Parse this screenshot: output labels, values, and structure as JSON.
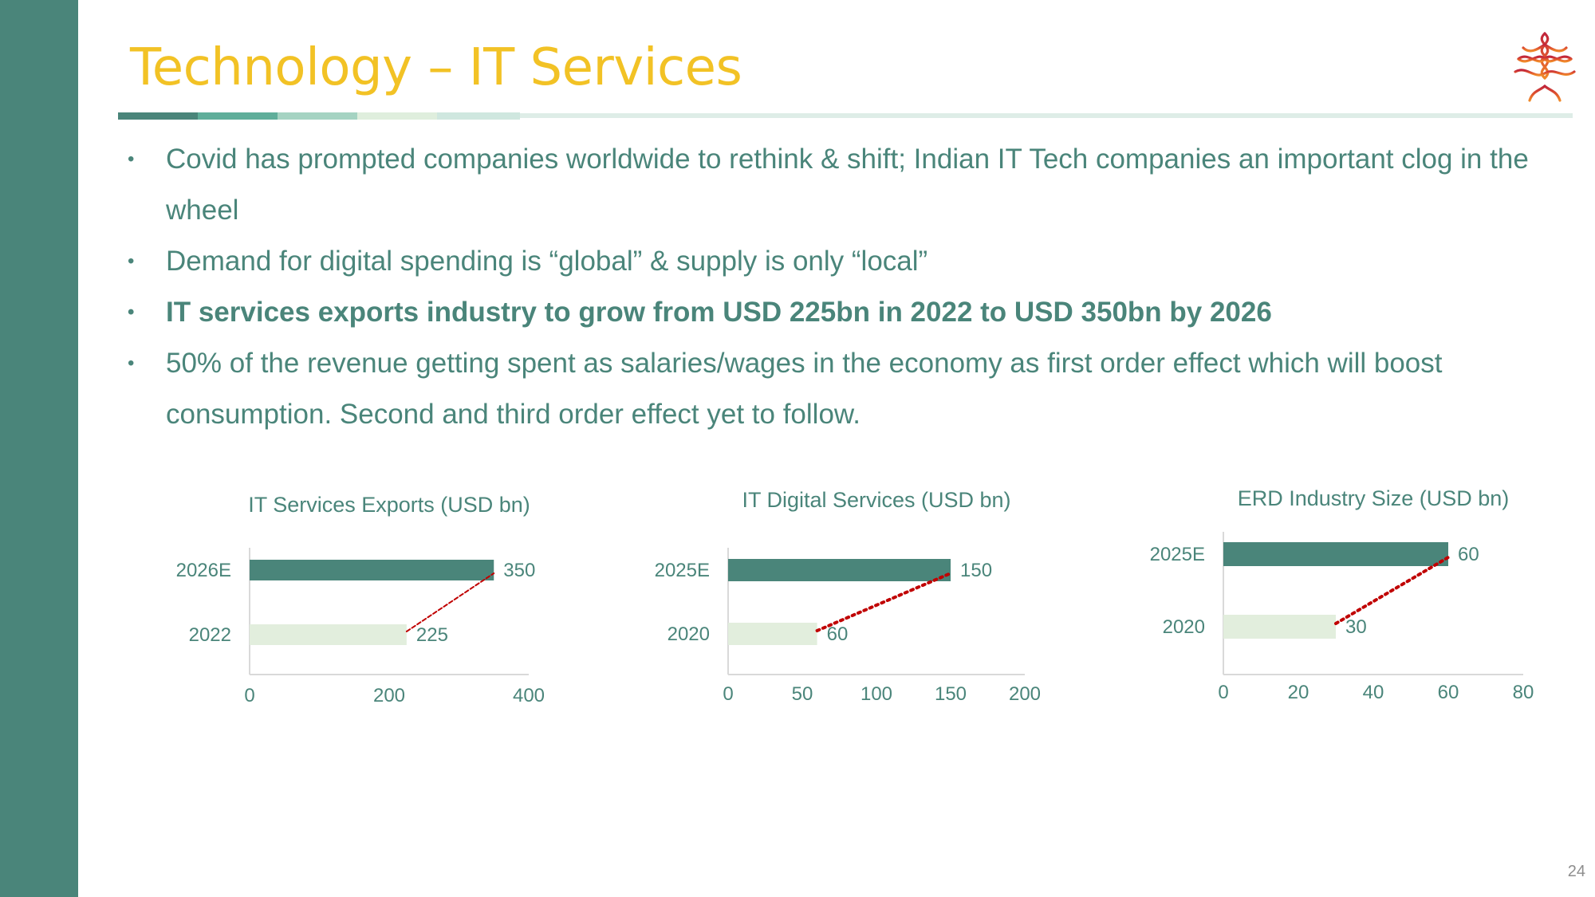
{
  "slide": {
    "title": "Technology – IT Services",
    "page_number": "24",
    "logo": "celtic-tree-logo",
    "colors": {
      "sidebar": "#4a857a",
      "title": "#f2c225",
      "text": "#4a857a",
      "bar_dark": "#4a857a",
      "bar_light": "#e2eedd",
      "trend": "#c00000"
    }
  },
  "bullets": [
    "Covid has prompted companies worldwide to rethink & shift; Indian IT  Tech companies an important clog in the wheel",
    "Demand for digital spending is “global” & supply is only “local”",
    "IT services exports industry to grow from USD 225bn in 2022 to USD 350bn by 2026",
    "50% of the revenue getting spent as salaries/wages in the economy as first order effect which will boost consumption. Second and third order effect yet to follow."
  ],
  "chart_data": [
    {
      "type": "bar",
      "orientation": "horizontal",
      "title": "IT Services Exports (USD bn)",
      "categories": [
        "2026E",
        "2022"
      ],
      "values": [
        350,
        225
      ],
      "data_labels": [
        "350",
        "225"
      ],
      "xlim": [
        0,
        400
      ],
      "xticks": [
        "0",
        "200",
        "400"
      ],
      "trendline": "dashed",
      "grid": false
    },
    {
      "type": "bar",
      "orientation": "horizontal",
      "title": "IT Digital Services (USD bn)",
      "categories": [
        "2025E",
        "2020"
      ],
      "values": [
        150,
        60
      ],
      "data_labels": [
        "150",
        "60"
      ],
      "xlim": [
        0,
        200
      ],
      "xticks": [
        "0",
        "50",
        "100",
        "150",
        "200"
      ],
      "trendline": "dotted",
      "grid": false
    },
    {
      "type": "bar",
      "orientation": "horizontal",
      "title": "ERD Industry Size (USD bn)",
      "categories": [
        "2025E",
        "2020"
      ],
      "values": [
        60,
        30
      ],
      "data_labels": [
        "60",
        "30"
      ],
      "xlim": [
        0,
        80
      ],
      "xticks": [
        "0",
        "20",
        "40",
        "60",
        "80"
      ],
      "trendline": "dotted",
      "grid": false
    }
  ]
}
